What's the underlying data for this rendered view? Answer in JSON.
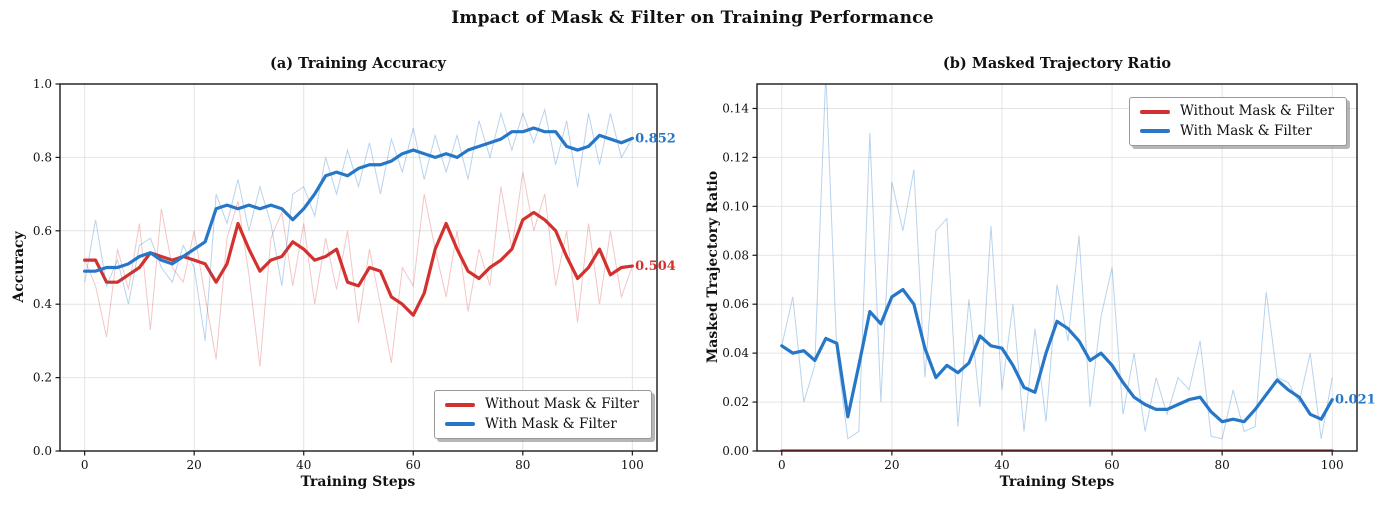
{
  "figure": {
    "title": "Impact of Mask & Filter on Training Performance"
  },
  "chart_data": [
    {
      "type": "line",
      "title": "(a) Training Accuracy",
      "xlabel": "Training Steps",
      "ylabel": "Accuracy",
      "xlim": [
        -4.5,
        104.5
      ],
      "ylim": [
        0.0,
        1.0
      ],
      "grid": true,
      "xticks": [
        0,
        20,
        40,
        60,
        80,
        100
      ],
      "yticks": [
        {
          "v": 0.0,
          "label": "0.0"
        },
        {
          "v": 0.2,
          "label": "0.2"
        },
        {
          "v": 0.4,
          "label": "0.4"
        },
        {
          "v": 0.6,
          "label": "0.6"
        },
        {
          "v": 0.8,
          "label": "0.8"
        },
        {
          "v": 1.0,
          "label": "1.0"
        }
      ],
      "legend": {
        "position": "lower right",
        "entries": [
          {
            "label": "Without Mask & Filter",
            "color": "#d3312e"
          },
          {
            "label": "With Mask & Filter",
            "color": "#2677c8"
          }
        ]
      },
      "x": [
        0,
        2,
        4,
        6,
        8,
        10,
        12,
        14,
        16,
        18,
        20,
        22,
        24,
        26,
        28,
        30,
        32,
        34,
        36,
        38,
        40,
        42,
        44,
        46,
        48,
        50,
        52,
        54,
        56,
        58,
        60,
        62,
        64,
        66,
        68,
        70,
        72,
        74,
        76,
        78,
        80,
        82,
        84,
        86,
        88,
        90,
        92,
        94,
        96,
        98,
        100
      ],
      "series": [
        {
          "name": "Without Mask & Filter",
          "color": "#d3312e",
          "raw_opacity": 0.28,
          "raw": [
            0.52,
            0.45,
            0.31,
            0.55,
            0.44,
            0.62,
            0.33,
            0.66,
            0.5,
            0.46,
            0.6,
            0.42,
            0.25,
            0.58,
            0.68,
            0.48,
            0.23,
            0.58,
            0.65,
            0.45,
            0.62,
            0.4,
            0.58,
            0.44,
            0.6,
            0.35,
            0.55,
            0.4,
            0.24,
            0.5,
            0.45,
            0.7,
            0.55,
            0.42,
            0.6,
            0.38,
            0.55,
            0.45,
            0.72,
            0.55,
            0.76,
            0.6,
            0.7,
            0.45,
            0.6,
            0.35,
            0.62,
            0.4,
            0.6,
            0.42,
            0.504
          ],
          "values": [
            0.52,
            0.52,
            0.46,
            0.46,
            0.48,
            0.5,
            0.54,
            0.53,
            0.52,
            0.53,
            0.52,
            0.51,
            0.46,
            0.51,
            0.62,
            0.55,
            0.49,
            0.52,
            0.53,
            0.57,
            0.55,
            0.52,
            0.53,
            0.55,
            0.46,
            0.45,
            0.5,
            0.49,
            0.42,
            0.4,
            0.37,
            0.43,
            0.55,
            0.62,
            0.55,
            0.49,
            0.47,
            0.5,
            0.52,
            0.55,
            0.63,
            0.65,
            0.63,
            0.6,
            0.53,
            0.47,
            0.5,
            0.55,
            0.48,
            0.5,
            0.504
          ]
        },
        {
          "name": "With Mask & Filter",
          "color": "#2677c8",
          "raw_opacity": 0.32,
          "raw": [
            0.46,
            0.63,
            0.45,
            0.52,
            0.4,
            0.56,
            0.58,
            0.5,
            0.46,
            0.56,
            0.5,
            0.3,
            0.7,
            0.62,
            0.74,
            0.6,
            0.72,
            0.62,
            0.45,
            0.7,
            0.72,
            0.64,
            0.8,
            0.7,
            0.82,
            0.72,
            0.84,
            0.7,
            0.85,
            0.76,
            0.88,
            0.74,
            0.86,
            0.76,
            0.86,
            0.74,
            0.9,
            0.8,
            0.92,
            0.82,
            0.92,
            0.84,
            0.93,
            0.78,
            0.9,
            0.72,
            0.92,
            0.78,
            0.92,
            0.8,
            0.852
          ],
          "values": [
            0.49,
            0.49,
            0.5,
            0.5,
            0.51,
            0.53,
            0.54,
            0.52,
            0.51,
            0.53,
            0.55,
            0.57,
            0.66,
            0.67,
            0.66,
            0.67,
            0.66,
            0.67,
            0.66,
            0.63,
            0.66,
            0.7,
            0.75,
            0.76,
            0.75,
            0.77,
            0.78,
            0.78,
            0.79,
            0.81,
            0.82,
            0.81,
            0.8,
            0.81,
            0.8,
            0.82,
            0.83,
            0.84,
            0.85,
            0.87,
            0.87,
            0.88,
            0.87,
            0.87,
            0.83,
            0.82,
            0.83,
            0.86,
            0.85,
            0.84,
            0.852
          ]
        }
      ],
      "annotations": [
        {
          "text": "0.852",
          "x": 100.5,
          "y": 0.852,
          "color": "#2677c8"
        },
        {
          "text": "0.504",
          "x": 100.5,
          "y": 0.504,
          "color": "#d3312e"
        }
      ]
    },
    {
      "type": "line",
      "title": "(b) Masked Trajectory Ratio",
      "xlabel": "Training Steps",
      "ylabel": "Masked Trajectory Ratio",
      "xlim": [
        -4.5,
        104.5
      ],
      "ylim": [
        0.0,
        0.15
      ],
      "grid": true,
      "xticks": [
        0,
        20,
        40,
        60,
        80,
        100
      ],
      "yticks": [
        {
          "v": 0.0,
          "label": "0.00"
        },
        {
          "v": 0.02,
          "label": "0.02"
        },
        {
          "v": 0.04,
          "label": "0.04"
        },
        {
          "v": 0.06,
          "label": "0.06"
        },
        {
          "v": 0.08,
          "label": "0.08"
        },
        {
          "v": 0.1,
          "label": "0.10"
        },
        {
          "v": 0.12,
          "label": "0.12"
        },
        {
          "v": 0.14,
          "label": "0.14"
        }
      ],
      "legend": {
        "position": "upper right",
        "entries": [
          {
            "label": "Without Mask & Filter",
            "color": "#d3312e"
          },
          {
            "label": "With Mask & Filter",
            "color": "#2677c8"
          }
        ]
      },
      "x": [
        0,
        2,
        4,
        6,
        8,
        10,
        12,
        14,
        16,
        18,
        20,
        22,
        24,
        26,
        28,
        30,
        32,
        34,
        36,
        38,
        40,
        42,
        44,
        46,
        48,
        50,
        52,
        54,
        56,
        58,
        60,
        62,
        64,
        66,
        68,
        70,
        72,
        74,
        76,
        78,
        80,
        82,
        84,
        86,
        88,
        90,
        92,
        94,
        96,
        98,
        100
      ],
      "series": [
        {
          "name": "Without Mask & Filter",
          "color": "#c62f2c",
          "raw_opacity": 0.28,
          "raw": null,
          "values": [
            0,
            0,
            0,
            0,
            0,
            0,
            0,
            0,
            0,
            0,
            0,
            0,
            0,
            0,
            0,
            0,
            0,
            0,
            0,
            0,
            0,
            0,
            0,
            0,
            0,
            0,
            0,
            0,
            0,
            0,
            0,
            0,
            0,
            0,
            0,
            0,
            0,
            0,
            0,
            0,
            0,
            0,
            0,
            0,
            0,
            0,
            0,
            0,
            0,
            0,
            0
          ]
        },
        {
          "name": "With Mask & Filter",
          "color": "#2677c8",
          "raw_opacity": 0.32,
          "raw": [
            0.043,
            0.063,
            0.02,
            0.035,
            0.155,
            0.04,
            0.005,
            0.008,
            0.13,
            0.02,
            0.11,
            0.09,
            0.115,
            0.03,
            0.09,
            0.095,
            0.01,
            0.062,
            0.018,
            0.092,
            0.025,
            0.06,
            0.008,
            0.05,
            0.012,
            0.068,
            0.045,
            0.088,
            0.018,
            0.055,
            0.075,
            0.015,
            0.04,
            0.008,
            0.03,
            0.015,
            0.03,
            0.025,
            0.045,
            0.006,
            0.005,
            0.025,
            0.008,
            0.01,
            0.065,
            0.03,
            0.028,
            0.02,
            0.04,
            0.005,
            0.03
          ],
          "values": [
            0.043,
            0.04,
            0.041,
            0.037,
            0.046,
            0.044,
            0.014,
            0.035,
            0.057,
            0.052,
            0.063,
            0.066,
            0.06,
            0.042,
            0.03,
            0.035,
            0.032,
            0.036,
            0.047,
            0.043,
            0.042,
            0.035,
            0.026,
            0.024,
            0.04,
            0.053,
            0.05,
            0.045,
            0.037,
            0.04,
            0.035,
            0.028,
            0.022,
            0.019,
            0.017,
            0.017,
            0.019,
            0.021,
            0.022,
            0.016,
            0.012,
            0.013,
            0.012,
            0.017,
            0.023,
            0.029,
            0.025,
            0.022,
            0.015,
            0.013,
            0.021
          ]
        }
      ],
      "annotations": [
        {
          "text": "0.021",
          "x": 100.5,
          "y": 0.021,
          "color": "#2677c8"
        }
      ]
    }
  ]
}
